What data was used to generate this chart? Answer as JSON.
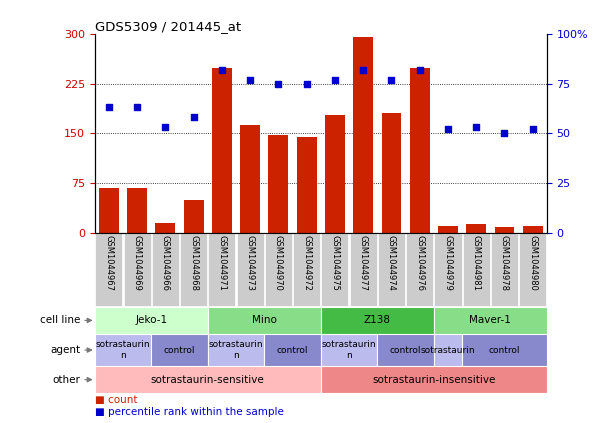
{
  "title": "GDS5309 / 201445_at",
  "samples": [
    "GSM1044967",
    "GSM1044969",
    "GSM1044966",
    "GSM1044968",
    "GSM1044971",
    "GSM1044973",
    "GSM1044970",
    "GSM1044972",
    "GSM1044975",
    "GSM1044977",
    "GSM1044974",
    "GSM1044976",
    "GSM1044979",
    "GSM1044981",
    "GSM1044978",
    "GSM1044980"
  ],
  "counts": [
    68,
    68,
    15,
    50,
    248,
    163,
    148,
    145,
    178,
    295,
    180,
    248,
    10,
    13,
    8,
    10
  ],
  "percentiles": [
    63,
    63,
    53,
    58,
    82,
    77,
    75,
    75,
    77,
    82,
    77,
    82,
    52,
    53,
    50,
    52
  ],
  "cell_lines": [
    {
      "label": "Jeko-1",
      "start": 0,
      "end": 4,
      "color": "#ccffcc"
    },
    {
      "label": "Mino",
      "start": 4,
      "end": 8,
      "color": "#88dd88"
    },
    {
      "label": "Z138",
      "start": 8,
      "end": 12,
      "color": "#44bb44"
    },
    {
      "label": "Maver-1",
      "start": 12,
      "end": 16,
      "color": "#88dd88"
    }
  ],
  "agents": [
    {
      "label": "sotrastaurin\nn",
      "start": 0,
      "end": 2,
      "color": "#bbbbee"
    },
    {
      "label": "control",
      "start": 2,
      "end": 4,
      "color": "#8888cc"
    },
    {
      "label": "sotrastaurin\nn",
      "start": 4,
      "end": 6,
      "color": "#bbbbee"
    },
    {
      "label": "control",
      "start": 6,
      "end": 8,
      "color": "#8888cc"
    },
    {
      "label": "sotrastaurin\nn",
      "start": 8,
      "end": 10,
      "color": "#bbbbee"
    },
    {
      "label": "control",
      "start": 10,
      "end": 12,
      "color": "#8888cc"
    },
    {
      "label": "sotrastaurin",
      "start": 12,
      "end": 13,
      "color": "#bbbbee"
    },
    {
      "label": "control",
      "start": 13,
      "end": 16,
      "color": "#8888cc"
    }
  ],
  "others": [
    {
      "label": "sotrastaurin-sensitive",
      "start": 0,
      "end": 8,
      "color": "#ffbbbb"
    },
    {
      "label": "sotrastaurin-insensitive",
      "start": 8,
      "end": 16,
      "color": "#ee8888"
    }
  ],
  "bar_color": "#cc2200",
  "dot_color": "#0000cc",
  "left_yticks": [
    0,
    75,
    150,
    225,
    300
  ],
  "right_yticks": [
    0,
    25,
    50,
    75,
    100
  ],
  "left_ylim": [
    0,
    300
  ],
  "right_ylim": [
    0,
    100
  ],
  "grid_values": [
    75,
    150,
    225
  ],
  "tick_label_color_left": "#cc0000",
  "tick_label_color_right": "#0000cc",
  "row_labels": [
    "cell line",
    "agent",
    "other"
  ],
  "legend_items": [
    {
      "symbol": "s",
      "color": "#cc2200",
      "label": "count"
    },
    {
      "symbol": "s",
      "color": "#0000cc",
      "label": "percentile rank within the sample"
    }
  ]
}
